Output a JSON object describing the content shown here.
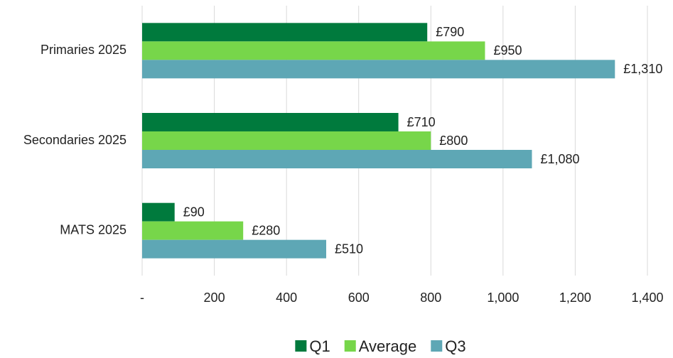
{
  "chart_data": {
    "type": "hbar",
    "categories": [
      "Primaries 2025",
      "Secondaries 2025",
      "MATS 2025"
    ],
    "series": [
      {
        "name": "Q1",
        "color": "#007a3d",
        "values": [
          790,
          710,
          90
        ],
        "value_labels": [
          "£790",
          "£710",
          "£90"
        ]
      },
      {
        "name": "Average",
        "color": "#77d64a",
        "values": [
          950,
          800,
          280
        ],
        "value_labels": [
          "£950",
          "£800",
          "£280"
        ]
      },
      {
        "name": "Q3",
        "color": "#5ea7b5",
        "values": [
          1310,
          1080,
          510
        ],
        "value_labels": [
          "£1,310",
          "£1,080",
          "£510"
        ]
      }
    ],
    "xlim": [
      0,
      1400
    ],
    "xticks": [
      {
        "value": 0,
        "label": "-"
      },
      200,
      400,
      600,
      800,
      {
        "value": 1000,
        "label": "1,000"
      },
      {
        "value": 1200,
        "label": "1,200"
      },
      {
        "value": 1400,
        "label": "1,400"
      }
    ],
    "grid": true,
    "legend": "bottom"
  }
}
